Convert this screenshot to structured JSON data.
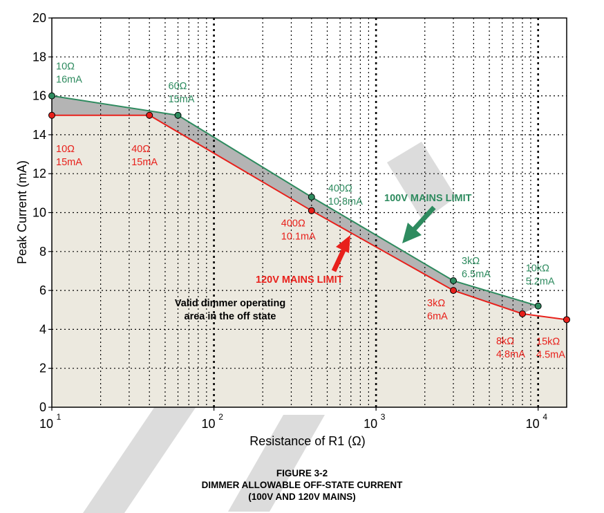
{
  "chart_data": {
    "type": "line",
    "title": "",
    "xlabel": "Resistance of R1 (Ω)",
    "ylabel": "Peak Current (mA)",
    "xscale": "log",
    "xlim": [
      10,
      15000
    ],
    "ylim": [
      0,
      20
    ],
    "grid": true,
    "x_ticks": [
      {
        "base": "10",
        "exp": "1"
      },
      {
        "base": "10",
        "exp": "2"
      },
      {
        "base": "10",
        "exp": "3"
      },
      {
        "base": "10",
        "exp": "4"
      }
    ],
    "y_ticks": [
      "0",
      "2",
      "4",
      "6",
      "8",
      "10",
      "12",
      "14",
      "16",
      "18",
      "20"
    ],
    "series": [
      {
        "name": "100V MAINS LIMIT",
        "color": "#2e8b5f",
        "x": [
          10,
          60,
          400,
          3000,
          10000
        ],
        "y": [
          16,
          15,
          10.8,
          6.5,
          5.2
        ]
      },
      {
        "name": "120V MAINS LIMIT",
        "color": "#e8201b",
        "x": [
          10,
          40,
          400,
          3000,
          8000,
          15000
        ],
        "y": [
          15,
          15,
          10.1,
          6,
          4.8,
          4.5
        ]
      }
    ],
    "point_labels_100v": [
      {
        "x": 10,
        "y": 16,
        "line1": "10Ω",
        "line2": "16mA"
      },
      {
        "x": 60,
        "y": 15,
        "line1": "60Ω",
        "line2": "15mA"
      },
      {
        "x": 400,
        "y": 10.8,
        "line1": "400Ω",
        "line2": "10.8mA"
      },
      {
        "x": 3000,
        "y": 6.5,
        "line1": "3kΩ",
        "line2": "6.5mA"
      },
      {
        "x": 10000,
        "y": 5.2,
        "line1": "10kΩ",
        "line2": "5.2mA"
      }
    ],
    "point_labels_120v": [
      {
        "x": 10,
        "y": 15,
        "line1": "10Ω",
        "line2": "15mA"
      },
      {
        "x": 40,
        "y": 15,
        "line1": "40Ω",
        "line2": "15mA"
      },
      {
        "x": 400,
        "y": 10.1,
        "line1": "400Ω",
        "line2": "10.1mA"
      },
      {
        "x": 3000,
        "y": 6,
        "line1": "3kΩ",
        "line2": "6mA"
      },
      {
        "x": 8000,
        "y": 4.8,
        "line1": "8kΩ",
        "line2": "4.8mA"
      },
      {
        "x": 15000,
        "y": 4.5,
        "line1": "15kΩ",
        "line2": "4.5mA"
      }
    ],
    "series_labels": {
      "limit_100v": "100V MAINS LIMIT",
      "limit_120v": "120V MAINS LIMIT"
    },
    "region_label": {
      "line1": "Valid dimmer operating",
      "line2": "area in the off state"
    },
    "colors": {
      "green": "#2e8b5f",
      "red": "#e8201b",
      "valid_area": "#ece9df",
      "band": "#b4b4b4"
    }
  },
  "caption": {
    "line1": "FIGURE 3-2",
    "line2": "DIMMER ALLOWABLE OFF-STATE CURRENT",
    "line3": "(100V AND 120V MAINS)"
  }
}
